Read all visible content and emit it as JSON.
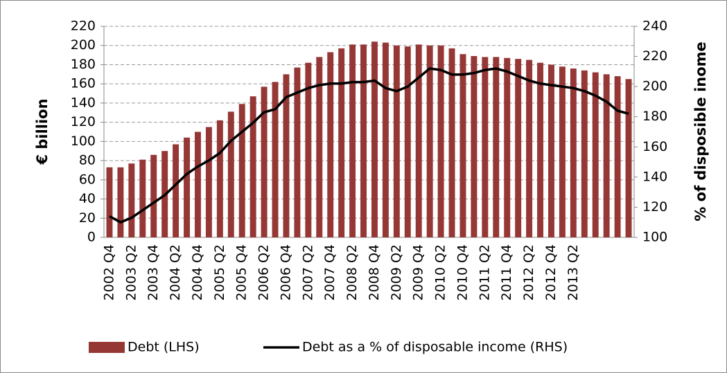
{
  "chart_data": {
    "type": "bar_line",
    "y_label": "€ billion",
    "y2_label": "% of disposible inome",
    "categories": [
      "2002 Q4",
      null,
      "2003 Q2",
      null,
      "2003 Q4",
      null,
      "2004 Q2",
      null,
      "2004 Q4",
      null,
      "2005 Q2",
      null,
      "2005 Q4",
      null,
      "2006 Q2",
      null,
      "2006 Q4",
      null,
      "2007 Q2",
      null,
      "2007 Q4",
      null,
      "2008 Q2",
      null,
      "2008 Q4",
      null,
      "2009 Q2",
      null,
      "2009 Q4",
      null,
      "2010 Q2",
      null,
      "2010 Q4",
      null,
      "2011 Q2",
      null,
      "2011 Q4",
      null,
      "2012 Q2",
      null,
      "2012 Q4",
      null,
      "2013 Q2",
      null,
      null,
      null,
      null,
      null
    ],
    "series": [
      {
        "name": "Debt (LHS)",
        "type": "bar",
        "color": "#953735",
        "values": [
          73,
          73,
          77,
          81,
          86,
          90,
          97,
          104,
          110,
          115,
          122,
          131,
          139,
          147,
          157,
          162,
          170,
          177,
          182,
          188,
          193,
          197,
          201,
          201,
          204,
          203,
          200,
          199,
          201,
          200,
          200,
          197,
          191,
          189,
          188,
          188,
          187,
          186,
          185,
          182,
          180,
          178,
          176,
          174,
          172,
          170,
          168,
          165
        ]
      },
      {
        "name": "Debt as a % of disposable income (RHS)",
        "type": "line",
        "axis": "y2",
        "color": "#000000",
        "values": [
          114,
          110,
          113,
          118,
          123,
          128,
          135,
          142,
          147,
          151,
          156,
          164,
          170,
          176,
          183,
          185,
          193,
          196,
          199,
          201,
          202,
          202,
          203,
          203,
          204,
          199,
          197,
          200,
          206,
          212,
          211,
          208,
          208,
          209,
          211,
          212,
          210,
          207,
          204,
          202,
          201,
          200,
          199,
          197,
          194,
          190,
          184,
          182
        ]
      }
    ],
    "ylim": [
      0,
      220
    ],
    "yticks": [
      0,
      20,
      40,
      60,
      80,
      100,
      120,
      140,
      160,
      180,
      200,
      220
    ],
    "y2lim": [
      100,
      240
    ],
    "y2ticks": [
      100,
      120,
      140,
      160,
      180,
      200,
      220,
      240
    ],
    "grid": true
  }
}
